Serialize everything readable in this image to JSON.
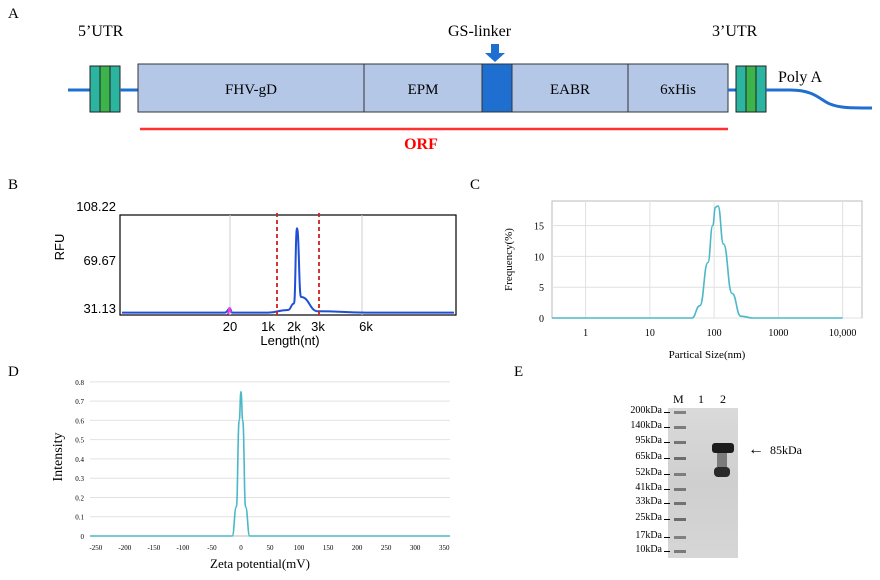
{
  "panels": {
    "a": "A",
    "b": "B",
    "c": "C",
    "d": "D",
    "e": "E"
  },
  "construct": {
    "utr5": "5’UTR",
    "utr3": "3’UTR",
    "gs_linker": "GS-linker",
    "poly_a": "Poly A",
    "orf": "ORF",
    "segments": [
      "FHV-gD",
      "EPM",
      "EABR",
      "6xHis"
    ],
    "colors": {
      "box": "#b4c7e7",
      "linker": "#1f6fd1",
      "utr_teal": "#2bb5a0",
      "utr_green": "#3cb44b",
      "orf_line": "#ff3030",
      "orf_text": "#ff0000"
    }
  },
  "rfu_chart": {
    "ylabel": "RFU",
    "xlabel": "Length(nt)",
    "yticks": [
      "108.22",
      "69.67",
      "31.13"
    ],
    "xticks": [
      "20",
      "1k",
      "2k",
      "3k",
      "6k"
    ]
  },
  "chart_data": [
    {
      "panel": "B",
      "type": "line",
      "xlabel": "Length(nt)",
      "ylabel": "RFU",
      "x_tick_labels": [
        "20",
        "1k",
        "2k",
        "3k",
        "6k"
      ],
      "ylim": [
        31.13,
        108.22
      ],
      "series": [
        {
          "x": [
            "20",
            "1k",
            "2k",
            "2.2k",
            "3k",
            "6k"
          ],
          "values": [
            36,
            33,
            40,
            98,
            34,
            33
          ]
        }
      ],
      "annotations": [
        "red dashed lines at 1k and 3k"
      ],
      "grid": true
    },
    {
      "panel": "C",
      "type": "line",
      "xlabel": "Partical Size(nm)",
      "ylabel": "Frequency(%)",
      "xscale": "log",
      "x_tick_labels": [
        "1",
        "10",
        "100",
        "1000",
        "10,000"
      ],
      "y_tick_labels": [
        "0",
        "5",
        "10",
        "15"
      ],
      "ylim": [
        0,
        19
      ],
      "series": [
        {
          "x": [
            0.3,
            20,
            45,
            60,
            80,
            95,
            105,
            115,
            140,
            190,
            260,
            400,
            10000
          ],
          "values": [
            0,
            0,
            0,
            2,
            9,
            15,
            18,
            18.2,
            12,
            4,
            0.3,
            0,
            0
          ]
        }
      ],
      "grid": true
    },
    {
      "panel": "D",
      "type": "line",
      "xlabel": "Zeta potential(mV)",
      "ylabel": "Intensity",
      "x_tick_labels": [
        "-250",
        "-200",
        "-150",
        "-100",
        "-50",
        "0",
        "50",
        "100",
        "150",
        "200",
        "250",
        "300",
        "350"
      ],
      "y_tick_labels": [
        "0",
        "0.1",
        "0.2",
        "0.3",
        "0.4",
        "0.5",
        "0.6",
        "0.7",
        "0.8"
      ],
      "xlim": [
        -260,
        360
      ],
      "ylim": [
        0,
        0.82
      ],
      "series": [
        {
          "x": [
            -260,
            -15,
            -8,
            -3,
            0,
            3,
            8,
            15,
            360
          ],
          "values": [
            0,
            0,
            0.15,
            0.6,
            0.75,
            0.6,
            0.15,
            0,
            0
          ]
        }
      ],
      "grid": true
    }
  ],
  "western_blot": {
    "lanes": [
      "M",
      "1",
      "2"
    ],
    "markers": [
      "200kDa",
      "140kDa",
      "95kDa",
      "65kDa",
      "52kDa",
      "41kDa",
      "33kDa",
      "25kDa",
      "17kDa",
      "10kDa"
    ],
    "band_label": "85kDa"
  }
}
